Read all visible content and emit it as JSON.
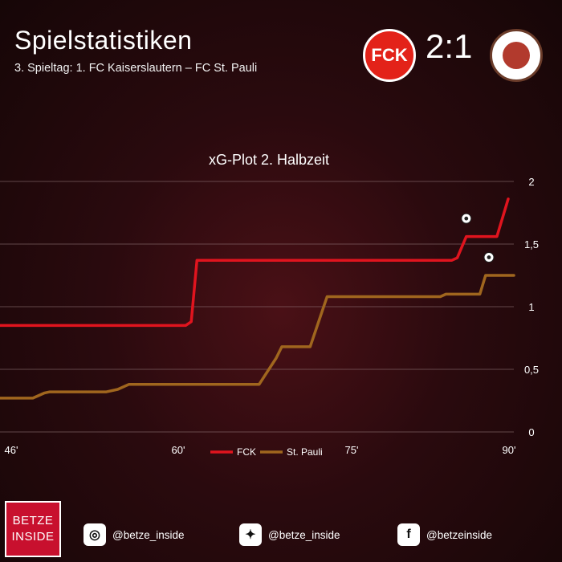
{
  "header": {
    "title": "Spielstatistiken",
    "subtitle": "3. Spieltag: 1. FC Kaiserslautern – FC St. Pauli",
    "score": "2:1",
    "crest_home": "FCK",
    "crest_away": "FC ST. PAULI 1910"
  },
  "chart_data": {
    "type": "line",
    "title": "xG-Plot 2. Halbzeit",
    "xlabel": "",
    "ylabel": "",
    "x_ticks": [
      "46'",
      "60'",
      "75'",
      "90'"
    ],
    "y_ticks": [
      "0",
      "0,5",
      "1",
      "1,5",
      "2"
    ],
    "xlim": [
      45.6,
      91
    ],
    "ylim": [
      0,
      2
    ],
    "legend_position": "bottom-center",
    "grid": true,
    "series": [
      {
        "name": "FCK",
        "color": "#e0141e",
        "step_points": [
          [
            45.6,
            0.85
          ],
          [
            62,
            0.85
          ],
          [
            62.5,
            0.88
          ],
          [
            63,
            1.37
          ],
          [
            85.5,
            1.37
          ],
          [
            86,
            1.39
          ],
          [
            86.8,
            1.56
          ],
          [
            89.5,
            1.56
          ],
          [
            90.5,
            1.86
          ]
        ],
        "goal_markers": [
          [
            86.8,
            1.64
          ]
        ]
      },
      {
        "name": "St. Pauli",
        "color": "#a0661e",
        "step_points": [
          [
            45.6,
            0.27
          ],
          [
            48.5,
            0.27
          ],
          [
            49.5,
            0.31
          ],
          [
            50,
            0.32
          ],
          [
            55,
            0.32
          ],
          [
            56,
            0.34
          ],
          [
            57,
            0.38
          ],
          [
            68.5,
            0.38
          ],
          [
            70,
            0.59
          ],
          [
            70.5,
            0.68
          ],
          [
            73,
            0.68
          ],
          [
            74.5,
            1.08
          ],
          [
            84.5,
            1.08
          ],
          [
            85,
            1.1
          ],
          [
            88,
            1.1
          ],
          [
            88.5,
            1.25
          ],
          [
            91,
            1.25
          ]
        ],
        "goal_markers": [
          [
            88.8,
            1.33
          ]
        ]
      }
    ]
  },
  "footer": {
    "brand_line1": "BETZE",
    "brand_line2": "INSIDE",
    "instagram": "@betze_inside",
    "twitter": "@betze_inside",
    "facebook": "@betzeinside"
  }
}
